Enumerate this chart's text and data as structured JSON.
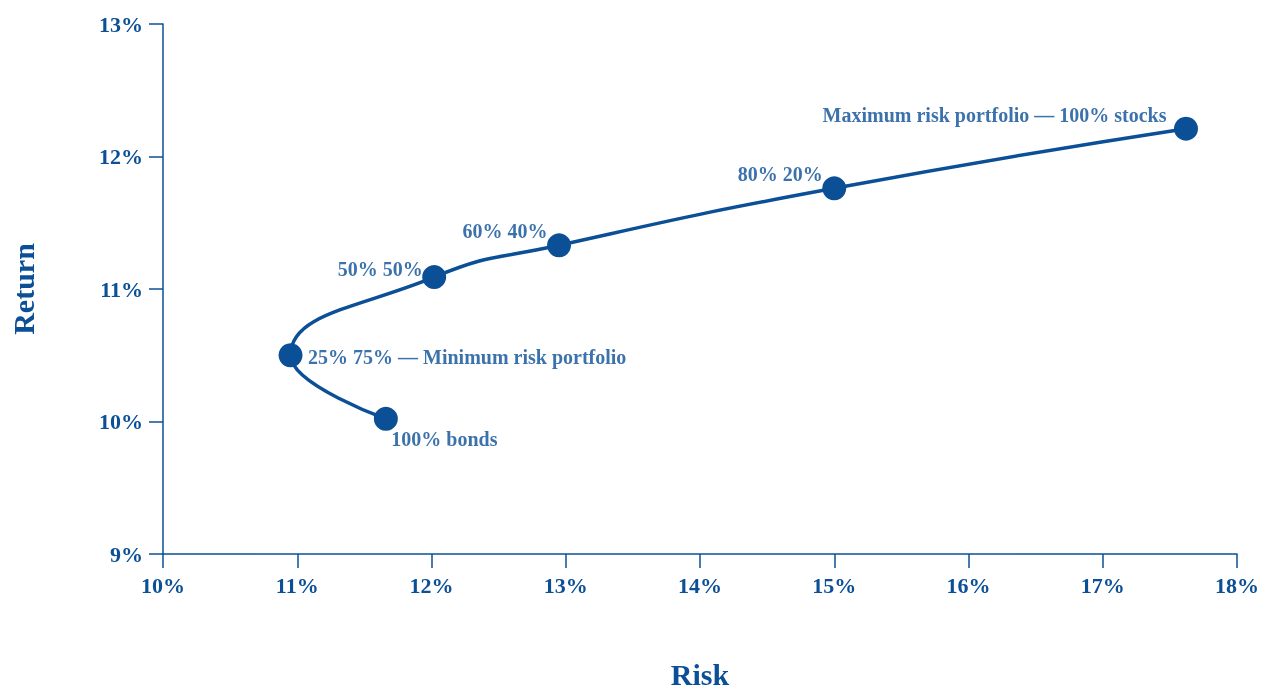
{
  "chart_data": {
    "type": "line",
    "xlabel": "Risk",
    "ylabel": "Return",
    "x": [
      11.66,
      10.95,
      12.02,
      12.95,
      15.0,
      17.62
    ],
    "series": [
      {
        "color": "#0b4f96",
        "values": [
          10.02,
          10.5,
          11.09,
          11.33,
          11.76,
          12.21
        ]
      }
    ],
    "xlim": [
      10,
      18
    ],
    "ylim": [
      9,
      13
    ],
    "xticks": [
      {
        "value": 10,
        "label": "10%"
      },
      {
        "value": 11,
        "label": "11%"
      },
      {
        "value": 12,
        "label": "12%"
      },
      {
        "value": 13,
        "label": "13%"
      },
      {
        "value": 14,
        "label": "14%"
      },
      {
        "value": 15,
        "label": "15%"
      },
      {
        "value": 16,
        "label": "16%"
      },
      {
        "value": 17,
        "label": "17%"
      },
      {
        "value": 18,
        "label": "18%"
      }
    ],
    "yticks": [
      {
        "value": 9,
        "label": "9%"
      },
      {
        "value": 10,
        "label": "10%"
      },
      {
        "value": 11,
        "label": "11%"
      },
      {
        "value": 12,
        "label": "12%"
      },
      {
        "value": 13,
        "label": "13%"
      }
    ],
    "annotations": [
      {
        "text": "100% bonds",
        "x": 11.66,
        "y": 10.02
      },
      {
        "text": "25% 75% — Minimum risk portfolio",
        "x": 10.95,
        "y": 10.5
      },
      {
        "text": "50% 50%",
        "x": 12.02,
        "y": 11.09
      },
      {
        "text": "60% 40%",
        "x": 12.95,
        "y": 11.33
      },
      {
        "text": "80% 20%",
        "x": 15.0,
        "y": 11.76
      },
      {
        "text": "Maximum risk portfolio — 100% stocks",
        "x": 17.62,
        "y": 12.21
      }
    ],
    "marker": "circle",
    "line_style": "solid",
    "grid": false
  }
}
